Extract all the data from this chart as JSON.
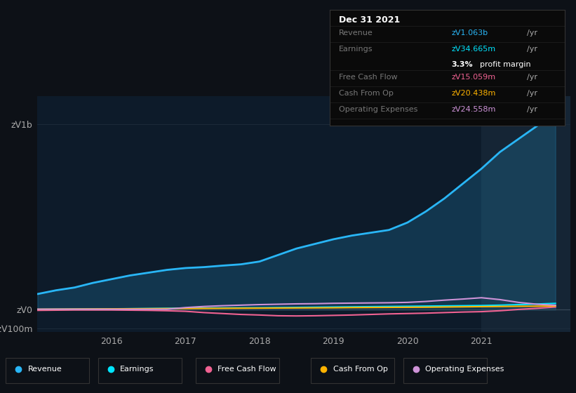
{
  "bg_color": "#0d1117",
  "chart_bg": "#0d1b2a",
  "grid_color": "#1e2d3d",
  "ylim": [
    -120000000,
    1150000000
  ],
  "yticks": [
    -100000000,
    0,
    1000000000
  ],
  "ytick_labels": [
    "-zᐯ100m",
    "zᐯ0",
    "zᐯ1b"
  ],
  "xlim": [
    2015.0,
    2022.2
  ],
  "xticks": [
    2016,
    2017,
    2018,
    2019,
    2020,
    2021
  ],
  "x_years": [
    2015.0,
    2015.25,
    2015.5,
    2015.75,
    2016.0,
    2016.25,
    2016.5,
    2016.75,
    2017.0,
    2017.25,
    2017.5,
    2017.75,
    2018.0,
    2018.25,
    2018.5,
    2018.75,
    2019.0,
    2019.25,
    2019.5,
    2019.75,
    2020.0,
    2020.25,
    2020.5,
    2020.75,
    2021.0,
    2021.25,
    2021.5,
    2021.75,
    2022.0
  ],
  "revenue": [
    85000000,
    105000000,
    120000000,
    145000000,
    165000000,
    185000000,
    200000000,
    215000000,
    225000000,
    230000000,
    238000000,
    245000000,
    260000000,
    295000000,
    330000000,
    355000000,
    380000000,
    400000000,
    415000000,
    430000000,
    470000000,
    530000000,
    600000000,
    680000000,
    760000000,
    850000000,
    920000000,
    990000000,
    1063000000
  ],
  "earnings": [
    2000000,
    3000000,
    4000000,
    4500000,
    5000000,
    6000000,
    7000000,
    8000000,
    9000000,
    9500000,
    10000000,
    10500000,
    11000000,
    12000000,
    13000000,
    14000000,
    15000000,
    16000000,
    17000000,
    18000000,
    19000000,
    20000000,
    21000000,
    22000000,
    23000000,
    25000000,
    28000000,
    31000000,
    34665000
  ],
  "free_cash_flow": [
    -3000000,
    -2000000,
    -1000000,
    -1000000,
    -1000000,
    -2000000,
    -3000000,
    -5000000,
    -8000000,
    -15000000,
    -20000000,
    -25000000,
    -28000000,
    -32000000,
    -33000000,
    -32000000,
    -30000000,
    -28000000,
    -25000000,
    -22000000,
    -20000000,
    -18000000,
    -15000000,
    -12000000,
    -10000000,
    -5000000,
    2000000,
    8000000,
    15059000
  ],
  "cash_from_op": [
    3000000,
    3500000,
    4000000,
    4500000,
    5000000,
    5500000,
    6000000,
    6500000,
    7000000,
    7500000,
    8000000,
    8500000,
    9000000,
    9500000,
    10000000,
    10500000,
    11000000,
    12000000,
    12500000,
    13000000,
    13500000,
    14000000,
    15000000,
    16000000,
    17000000,
    18000000,
    19000000,
    19500000,
    20438000
  ],
  "operating_expenses": [
    3000000,
    3000000,
    3000000,
    3000000,
    3000000,
    3000000,
    3000000,
    3000000,
    12000000,
    18000000,
    22000000,
    25000000,
    28000000,
    30000000,
    32000000,
    33000000,
    35000000,
    36000000,
    37000000,
    38000000,
    40000000,
    45000000,
    52000000,
    58000000,
    65000000,
    55000000,
    40000000,
    30000000,
    24558000
  ],
  "revenue_color": "#29b6f6",
  "earnings_color": "#00e5ff",
  "free_cash_flow_color": "#f06292",
  "cash_from_op_color": "#ffb300",
  "operating_expenses_color": "#ce93d8",
  "shaded_region_start": 2021.0,
  "tooltip_date": "Dec 31 2021",
  "tooltip_revenue": "zᐯ1.063b",
  "tooltip_earnings": "zᐯ34.665m",
  "tooltip_fcf": "zᐯ15.059m",
  "tooltip_cash_op": "zᐯ20.438m",
  "tooltip_op_exp": "zᐯ24.558m",
  "legend_entries": [
    "Revenue",
    "Earnings",
    "Free Cash Flow",
    "Cash From Op",
    "Operating Expenses"
  ],
  "legend_colors": [
    "#29b6f6",
    "#00e5ff",
    "#f06292",
    "#ffb300",
    "#ce93d8"
  ]
}
